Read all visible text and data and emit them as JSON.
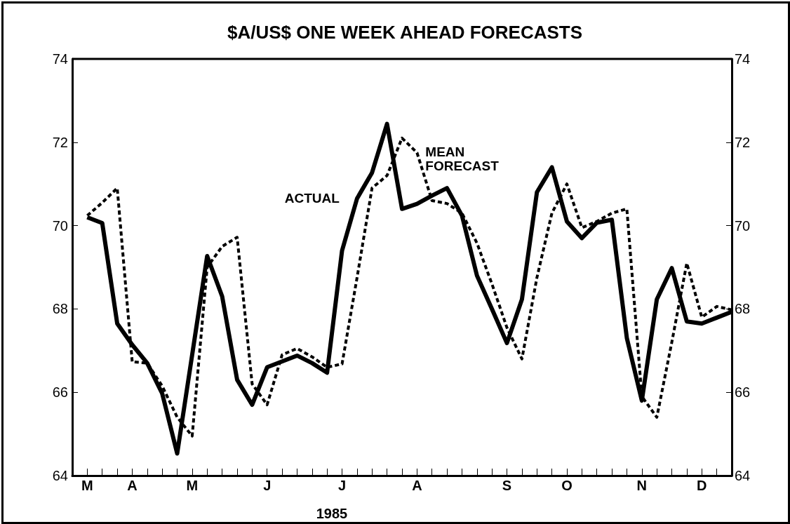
{
  "chart_data": {
    "type": "line",
    "title": "$A/US$ ONE WEEK AHEAD FORECASTS",
    "xlabel": "1985",
    "categories": [
      null,
      "M",
      null,
      null,
      "A",
      null,
      null,
      null,
      "M",
      null,
      null,
      null,
      null,
      "J",
      null,
      null,
      null,
      null,
      "J",
      null,
      null,
      null,
      null,
      "A",
      null,
      null,
      null,
      null,
      null,
      "S",
      null,
      null,
      null,
      "O",
      null,
      null,
      null,
      null,
      "N",
      null,
      null,
      null,
      "D",
      null,
      null
    ],
    "ylim": [
      64,
      74
    ],
    "yticks": [
      64,
      66,
      68,
      70,
      72,
      74
    ],
    "y2lim": [
      64,
      74
    ],
    "y2ticks": [
      64,
      66,
      68,
      70,
      72,
      74
    ],
    "grid": false,
    "legend": false,
    "marker": "none",
    "series": [
      {
        "name": "ACTUAL",
        "color": "#000000",
        "line_style": "solid",
        "values": [
          null,
          70.2,
          70.06,
          67.65,
          67.14,
          66.7,
          65.97,
          64.53,
          66.9,
          69.27,
          68.3,
          66.3,
          65.7,
          66.6,
          66.74,
          66.88,
          66.7,
          66.47,
          69.4,
          70.65,
          71.27,
          72.44,
          70.4,
          70.52,
          70.72,
          70.9,
          70.24,
          68.8,
          68.0,
          67.18,
          68.23,
          70.8,
          71.4,
          70.1,
          69.7,
          70.07,
          70.14,
          67.3,
          65.8,
          68.23,
          68.98,
          67.7,
          67.65,
          67.79,
          67.93
        ]
      },
      {
        "name": "MEAN FORECAST",
        "color": "#000000",
        "line_style": "dashed",
        "values": [
          null,
          70.24,
          70.55,
          70.9,
          66.73,
          66.7,
          66.15,
          65.4,
          64.95,
          69.0,
          69.5,
          69.72,
          66.2,
          65.7,
          66.9,
          67.05,
          66.85,
          66.6,
          66.68,
          68.75,
          70.9,
          71.2,
          72.1,
          71.75,
          70.6,
          70.53,
          70.3,
          69.58,
          68.6,
          67.55,
          66.8,
          68.75,
          70.3,
          71.0,
          69.95,
          70.1,
          70.3,
          70.4,
          65.9,
          65.4,
          67.2,
          69.1,
          67.8,
          68.06,
          67.98
        ]
      }
    ]
  }
}
